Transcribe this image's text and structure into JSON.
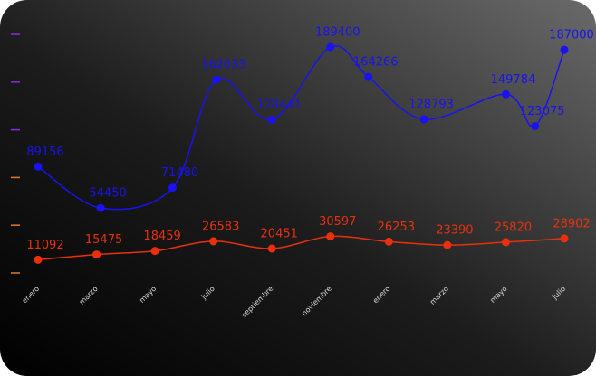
{
  "chart_data": {
    "type": "line",
    "categories": [
      "enero",
      "marzo",
      "mayo",
      "julio",
      "septiembre",
      "noviembre",
      "enero",
      "marzo",
      "mayo",
      "julio"
    ],
    "xlim": [
      0,
      9
    ],
    "ylim": [
      0,
      200000
    ],
    "yticks": [
      0,
      40000,
      80000,
      120000,
      160000,
      200000
    ],
    "series": [
      {
        "color": "#1a12f0",
        "x": [
          0,
          1.07,
          2.3,
          3.05,
          4,
          5,
          5.65,
          6.6,
          8,
          8.5,
          9
        ],
        "values": [
          89156,
          54450,
          71480,
          162033,
          128441,
          189400,
          164266,
          128793,
          149784,
          123075,
          187000
        ]
      },
      {
        "color": "#e8300f",
        "x": [
          0,
          1,
          2,
          3,
          4,
          5,
          6,
          7,
          8,
          9
        ],
        "values": [
          11092,
          15475,
          18459,
          26583,
          20451,
          30597,
          26253,
          23390,
          25820,
          28902
        ]
      }
    ]
  }
}
